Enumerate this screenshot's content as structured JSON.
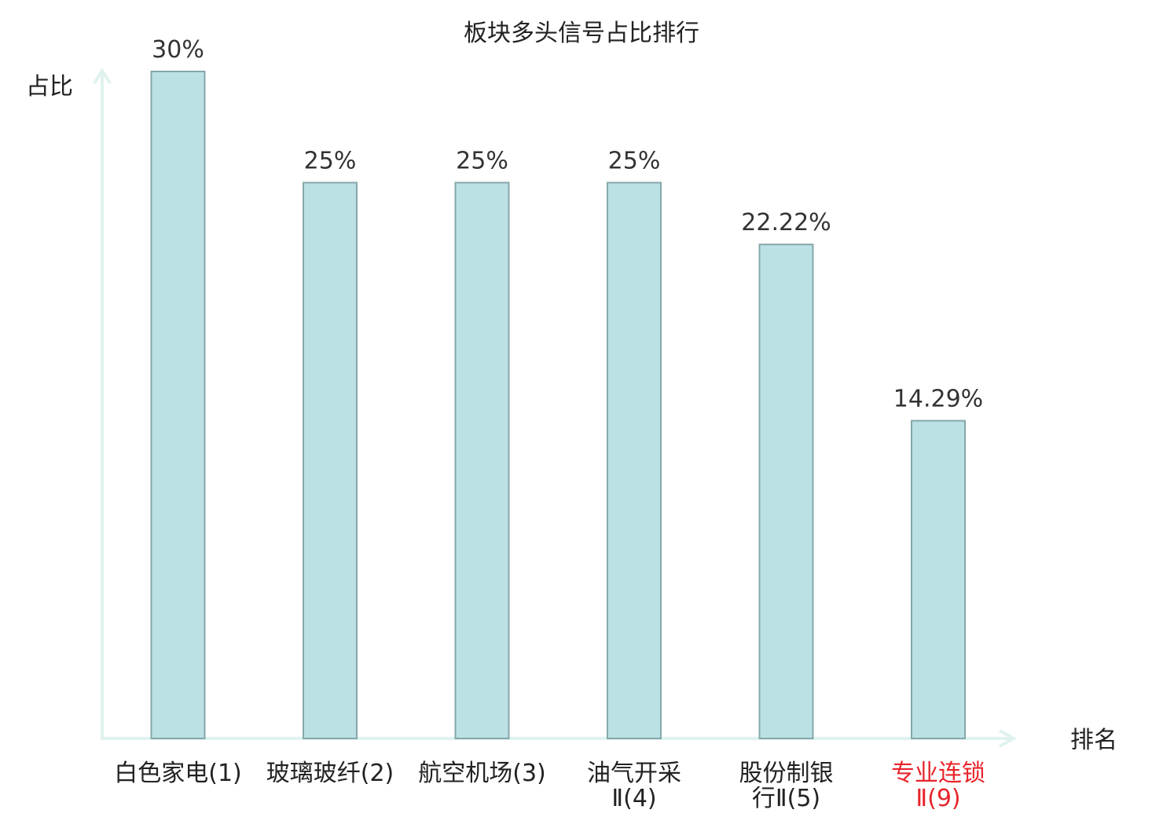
{
  "chart_data": {
    "type": "bar",
    "title": "板块多头信号占比排行",
    "ylabel": "占比",
    "xlabel": "排名",
    "categories": [
      [
        "白色家电(1)"
      ],
      [
        "玻璃玻纤(2)"
      ],
      [
        "航空机场(3)"
      ],
      [
        "油气开采",
        "Ⅱ(4)"
      ],
      [
        "股份制银",
        "行Ⅱ(5)"
      ],
      [
        "专业连锁",
        "Ⅱ(9)"
      ]
    ],
    "values": [
      30,
      25,
      25,
      25,
      22.22,
      14.29
    ],
    "value_labels": [
      "30%",
      "25%",
      "25%",
      "25%",
      "22.22%",
      "14.29%"
    ],
    "highlight_index": 5,
    "ylim": [
      0,
      30
    ],
    "grid": false,
    "legend": "none",
    "colors": {
      "bar_fill": "#bce1e4",
      "bar_stroke": "#86a7aa",
      "axis": "#dff2ef",
      "highlight_text": "#e8242b"
    }
  }
}
